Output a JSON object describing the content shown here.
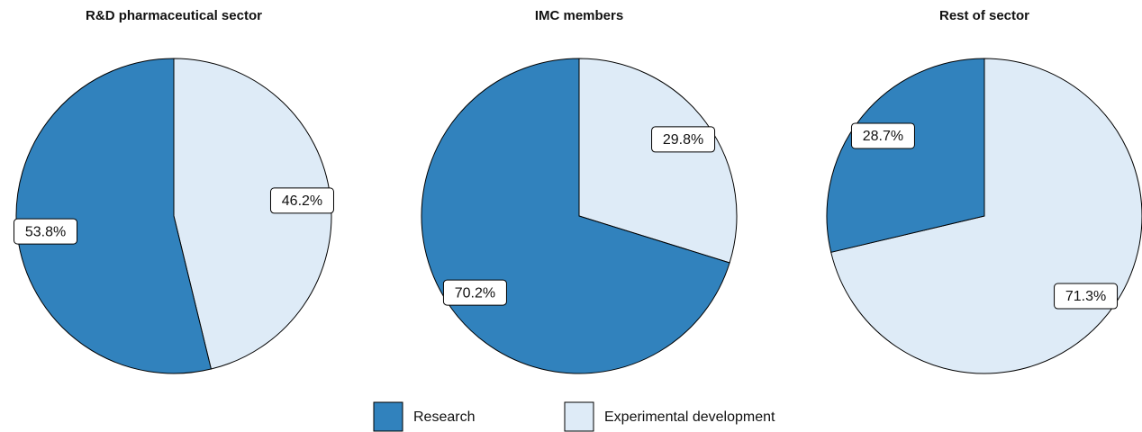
{
  "chart_data": [
    {
      "type": "pie",
      "title": "R&D pharmaceutical sector",
      "values": [
        53.8,
        46.2
      ],
      "value_labels": [
        "53.8%",
        "46.2%"
      ]
    },
    {
      "type": "pie",
      "title": "IMC members",
      "values": [
        70.2,
        29.8
      ],
      "value_labels": [
        "70.2%",
        "29.8%"
      ]
    },
    {
      "type": "pie",
      "title": "Rest of sector",
      "values": [
        28.7,
        71.3
      ],
      "value_labels": [
        "28.7%",
        "71.3%"
      ]
    }
  ],
  "legend": {
    "labels": [
      "Research",
      "Experimental development"
    ],
    "colors": [
      "#3182bd",
      "#deebf7"
    ]
  }
}
